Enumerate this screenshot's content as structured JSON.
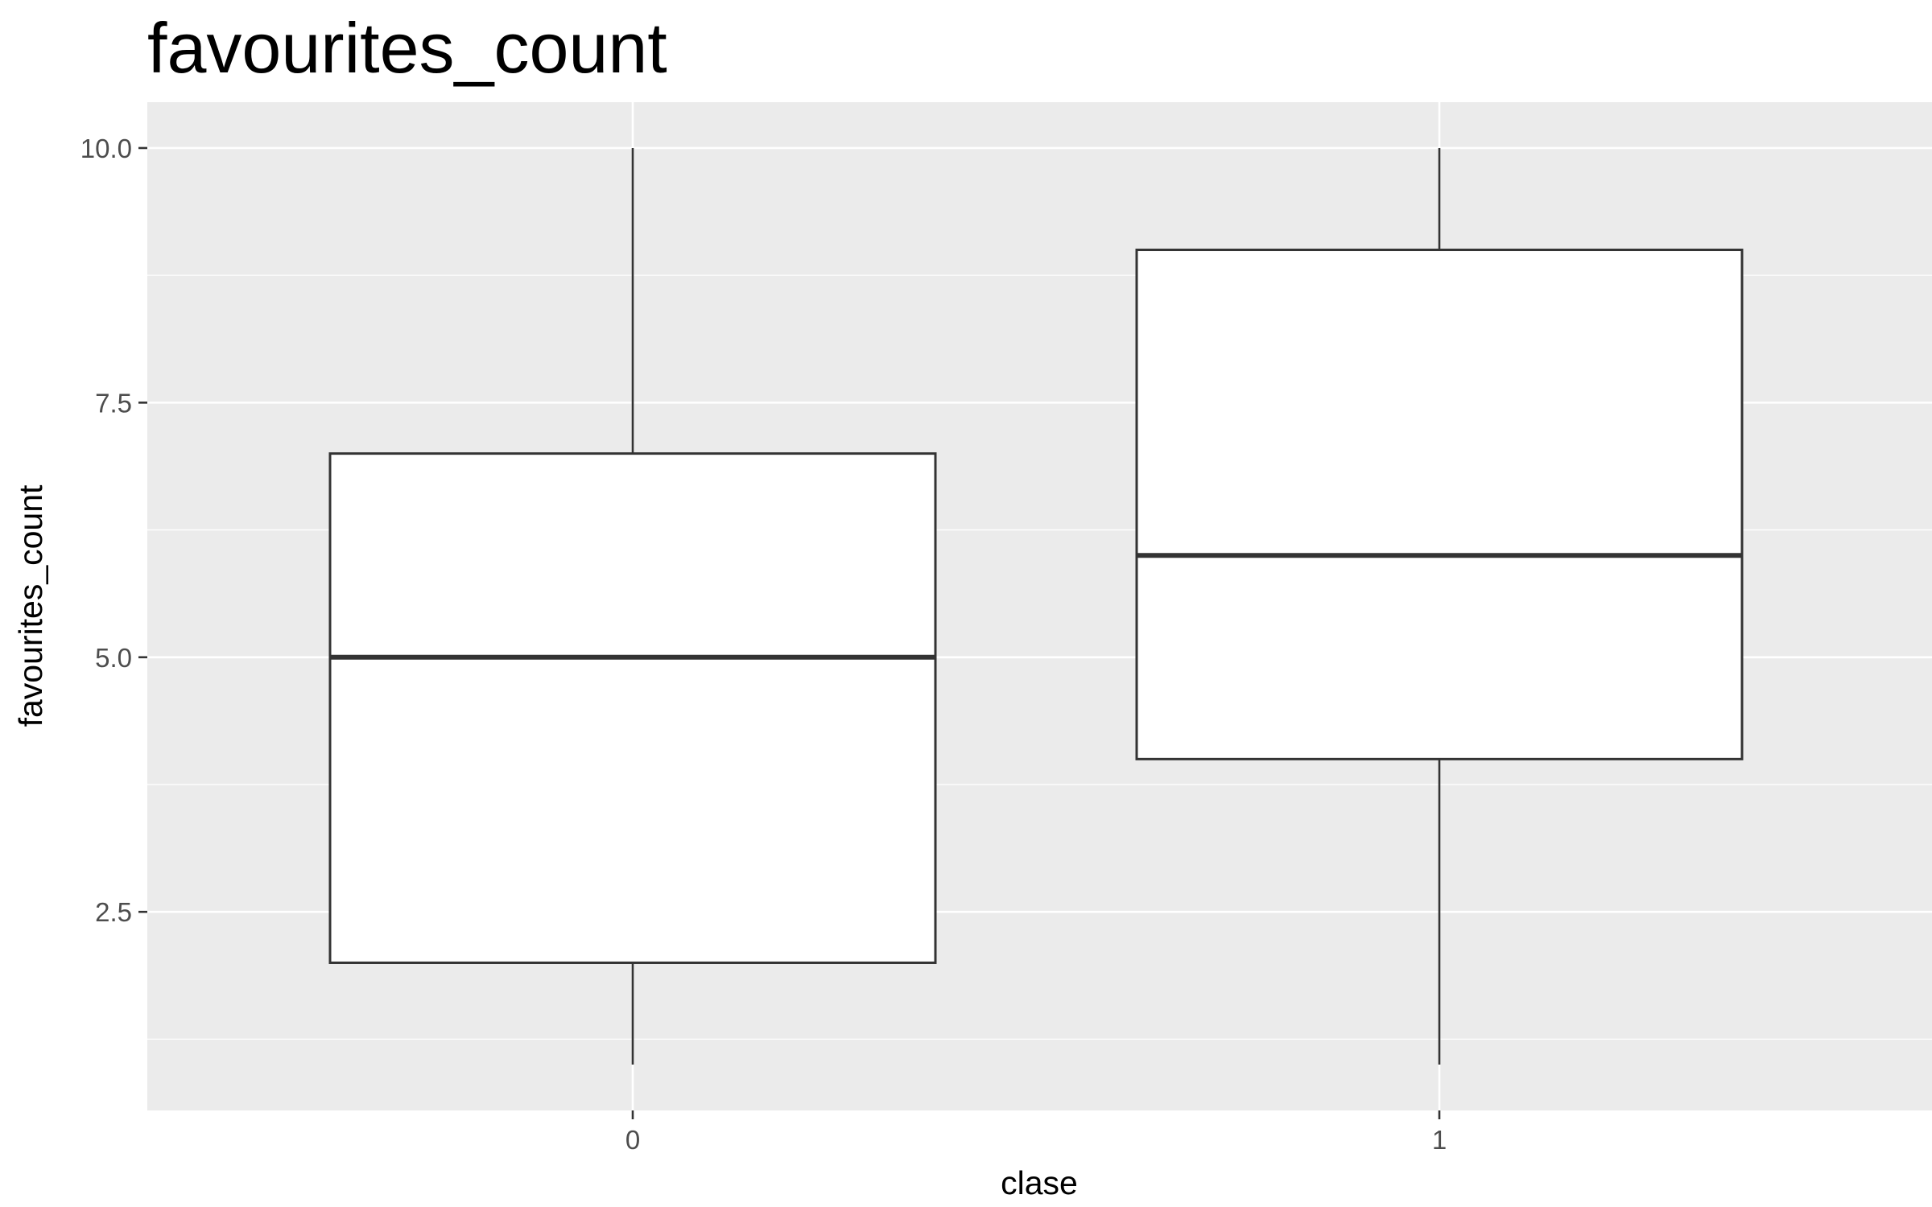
{
  "chart_data": {
    "type": "boxplot",
    "title": "favourites_count",
    "xlabel": "clase",
    "ylabel": "favourites_count",
    "categories": [
      "0",
      "1"
    ],
    "boxes": [
      {
        "category": "0",
        "min": 1.0,
        "q1": 2.0,
        "median": 5.0,
        "q3": 7.0,
        "max": 10.0
      },
      {
        "category": "1",
        "min": 1.0,
        "q1": 4.0,
        "median": 6.0,
        "q3": 9.0,
        "max": 10.0
      }
    ],
    "ylim": [
      0.55,
      10.45
    ],
    "y_ticks": [
      2.5,
      5.0,
      7.5,
      10.0
    ],
    "y_tick_labels": [
      "2.5",
      "5.0",
      "7.5",
      "10.0"
    ],
    "grid": true,
    "colors": {
      "panel_background": "#ebebeb",
      "grid_line": "#ffffff",
      "box_fill": "#ffffff",
      "box_stroke": "#333333",
      "tick_text": "#4d4d4d",
      "tick_mark": "#333333",
      "title_text": "#000000"
    }
  }
}
